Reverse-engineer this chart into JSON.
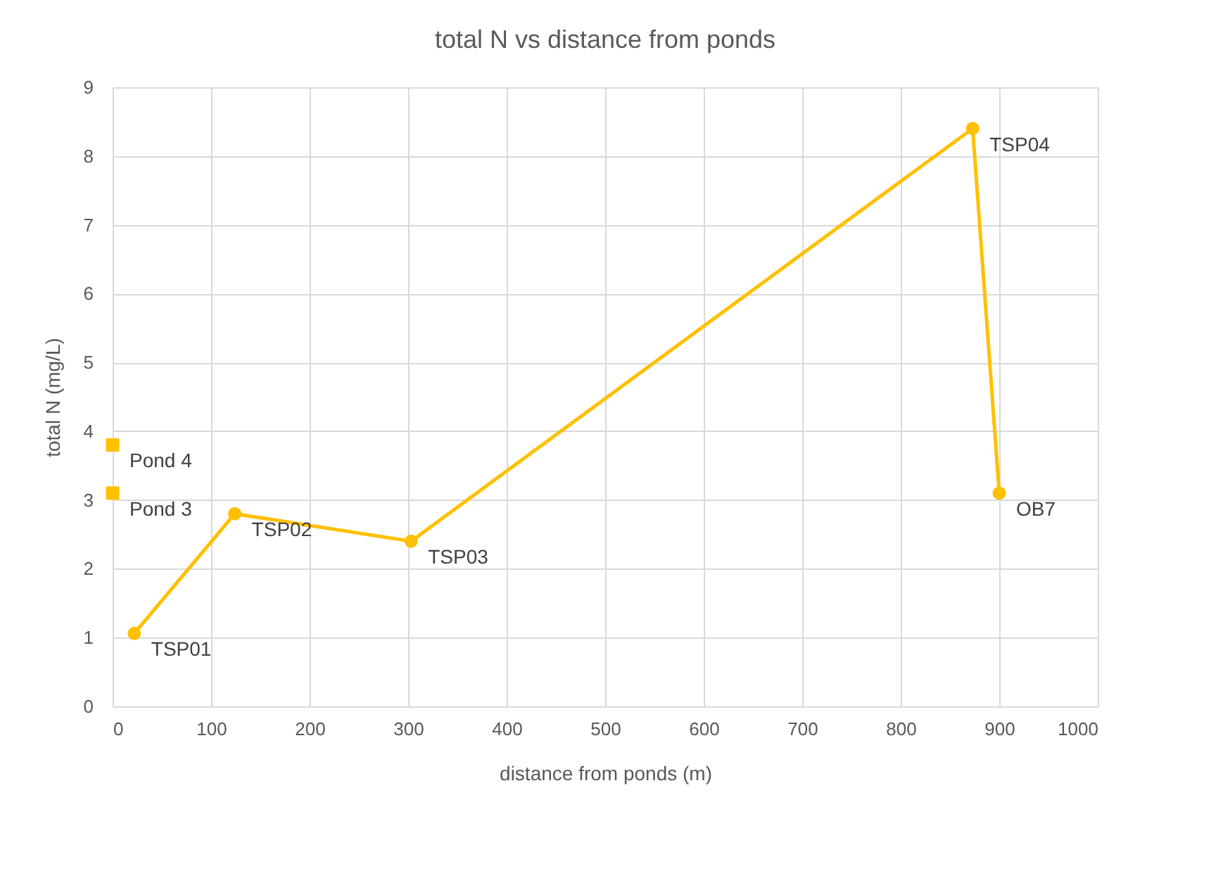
{
  "chart_data": {
    "type": "line",
    "title": "total N vs distance from ponds",
    "xlabel": "distance from ponds (m)",
    "ylabel": "total N (mg/L)",
    "series": [
      {
        "color": "#ffc000",
        "x": [
          22,
          124,
          303,
          873,
          900
        ],
        "values": [
          1.06,
          2.8,
          2.4,
          8.4,
          3.1
        ],
        "marker": "circle"
      },
      {
        "type": "scatter",
        "color": "#ffc000",
        "x": [
          0,
          0
        ],
        "values": [
          3.8,
          3.1
        ],
        "marker": "square"
      }
    ],
    "annotations": [
      {
        "text": "TSP01",
        "x": 22,
        "y": 1.06
      },
      {
        "text": "TSP02",
        "x": 124,
        "y": 2.8
      },
      {
        "text": "TSP03",
        "x": 303,
        "y": 2.4
      },
      {
        "text": "TSP04",
        "x": 873,
        "y": 8.4
      },
      {
        "text": "OB7",
        "x": 900,
        "y": 3.1
      },
      {
        "text": "Pond 4",
        "x": 0,
        "y": 3.8
      },
      {
        "text": "Pond 3",
        "x": 0,
        "y": 3.1
      }
    ],
    "xlim": [
      0,
      1000
    ],
    "xticks": [
      0,
      100,
      200,
      300,
      400,
      500,
      600,
      700,
      800,
      900,
      1000
    ],
    "ylim": [
      0,
      9
    ],
    "yticks": [
      0,
      1,
      2,
      3,
      4,
      5,
      6,
      7,
      8,
      9
    ],
    "grid": true
  }
}
